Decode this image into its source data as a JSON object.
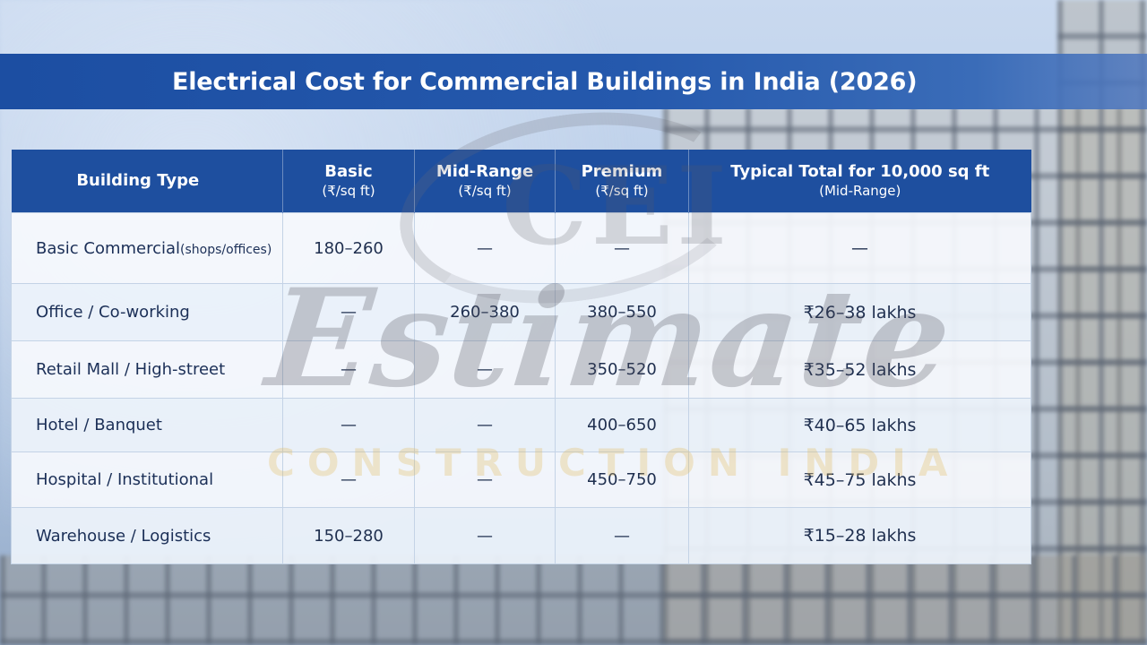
{
  "title": "Electrical Cost for Commercial Buildings in India (2026)",
  "table": {
    "headers": [
      {
        "label": "Building Type",
        "unit": ""
      },
      {
        "label": "Basic",
        "unit": "(₹/sq ft)"
      },
      {
        "label": "Mid-Range",
        "unit": "(₹/sq ft)"
      },
      {
        "label": "Premium",
        "unit": "(₹/sq ft)"
      },
      {
        "label": "Typical Total for 10,000 sq ft",
        "unit": "(Mid-Range)"
      }
    ],
    "rows": [
      {
        "type": "Basic Commercial",
        "note": "(shops/offices)",
        "basic": "180–260",
        "mid": "—",
        "premium": "—",
        "total": "—"
      },
      {
        "type": "Office / Co-working",
        "note": "",
        "basic": "—",
        "mid": "260–380",
        "premium": "380–550",
        "total": "₹26–38 lakhs"
      },
      {
        "type": "Retail Mall / High-street",
        "note": "",
        "basic": "—",
        "mid": "—",
        "premium": "350–520",
        "total": "₹35–52 lakhs"
      },
      {
        "type": "Hotel / Banquet",
        "note": "",
        "basic": "—",
        "mid": "—",
        "premium": "400–650",
        "total": "₹40–65 lakhs"
      },
      {
        "type": "Hospital / Institutional",
        "note": "",
        "basic": "—",
        "mid": "—",
        "premium": "450–750",
        "total": "₹45–75 lakhs"
      },
      {
        "type": "Warehouse / Logistics",
        "note": "",
        "basic": "150–280",
        "mid": "—",
        "premium": "—",
        "total": "₹15–28 lakhs"
      }
    ]
  },
  "watermark": {
    "monogram": "CEI",
    "word": "Estimate",
    "tagline": "CONSTRUCTION INDIA"
  },
  "colors": {
    "header_blue": "#1e4f9f",
    "title_bar_blue": "#1c4ea2",
    "text_dark": "#1b2f57",
    "watermark_gold": "#e1b95a"
  }
}
